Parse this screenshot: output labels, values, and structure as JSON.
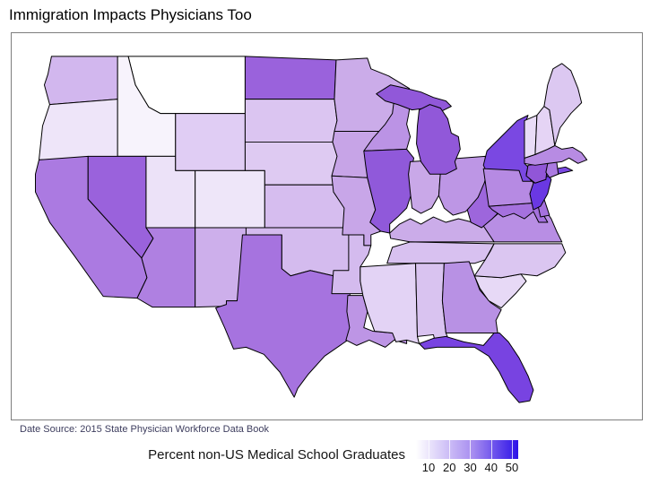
{
  "title": "Immigration Impacts Physicians Too",
  "source_note": "Date Source: 2015 State Physician Workforce Data Book",
  "chart_data": {
    "type": "choropleth_map",
    "region": "United States (lower 48 states)",
    "title": "Immigration Impacts Physicians Too",
    "legend_title": "Percent non-US Medical School Graduates",
    "legend_ticks": [
      10,
      20,
      30,
      40,
      50
    ],
    "scale": {
      "min": 4,
      "max": 53,
      "min_color": "#ffffff",
      "mid_color": "#a88ef0",
      "max_color": "#2d12e8"
    },
    "source_note": "Date Source: 2015 State Physician Workforce Data Book",
    "states": [
      {
        "abbr": "MT",
        "name": "Montana",
        "value": 4,
        "color": "#ffffff"
      },
      {
        "abbr": "ID",
        "name": "Idaho",
        "value": 7,
        "color": "#f7f3fc"
      },
      {
        "abbr": "WA",
        "name": "Washington",
        "value": 18,
        "color": "#d2b7ee"
      },
      {
        "abbr": "OR",
        "name": "Oregon",
        "value": 11,
        "color": "#eee5f9"
      },
      {
        "abbr": "CA",
        "name": "California",
        "value": 26,
        "color": "#ab7ae1"
      },
      {
        "abbr": "NV",
        "name": "Nevada",
        "value": 30,
        "color": "#9a62dc"
      },
      {
        "abbr": "UT",
        "name": "Utah",
        "value": 10,
        "color": "#ece2f8"
      },
      {
        "abbr": "CO",
        "name": "Colorado",
        "value": 10,
        "color": "#eee6f9"
      },
      {
        "abbr": "WY",
        "name": "Wyoming",
        "value": 13,
        "color": "#e0cdf4"
      },
      {
        "abbr": "AZ",
        "name": "Arizona",
        "value": 25,
        "color": "#af80e1"
      },
      {
        "abbr": "NM",
        "name": "New Mexico",
        "value": 19,
        "color": "#cdafeb"
      },
      {
        "abbr": "ND",
        "name": "North Dakota",
        "value": 30,
        "color": "#9a62dc"
      },
      {
        "abbr": "SD",
        "name": "South Dakota",
        "value": 15,
        "color": "#dbc5f1"
      },
      {
        "abbr": "NE",
        "name": "Nebraska",
        "value": 14,
        "color": "#decaf2"
      },
      {
        "abbr": "KS",
        "name": "Kansas",
        "value": 17,
        "color": "#d6bdef"
      },
      {
        "abbr": "OK",
        "name": "Oklahoma",
        "value": 17,
        "color": "#d4bbee"
      },
      {
        "abbr": "TX",
        "name": "Texas",
        "value": 26,
        "color": "#a673df"
      },
      {
        "abbr": "MN",
        "name": "Minnesota",
        "value": 20,
        "color": "#cbace9"
      },
      {
        "abbr": "IA",
        "name": "Iowa",
        "value": 21,
        "color": "#c7a4e7"
      },
      {
        "abbr": "MO",
        "name": "Missouri",
        "value": 21,
        "color": "#c8a6e8"
      },
      {
        "abbr": "AR",
        "name": "Arkansas",
        "value": 17,
        "color": "#d4bbee"
      },
      {
        "abbr": "LA",
        "name": "Louisiana",
        "value": 23,
        "color": "#bd95e5"
      },
      {
        "abbr": "WI",
        "name": "Wisconsin",
        "value": 24,
        "color": "#bb93e5"
      },
      {
        "abbr": "IL",
        "name": "Illinois",
        "value": 31,
        "color": "#9059da"
      },
      {
        "abbr": "IN",
        "name": "Indiana",
        "value": 21,
        "color": "#c9a8e8"
      },
      {
        "abbr": "OH",
        "name": "Ohio",
        "value": 23,
        "color": "#bd96e5"
      },
      {
        "abbr": "MI",
        "name": "Michigan",
        "value": 30,
        "color": "#9158d9"
      },
      {
        "abbr": "KY",
        "name": "Kentucky",
        "value": 20,
        "color": "#cbace9"
      },
      {
        "abbr": "TN",
        "name": "Tennessee",
        "value": 16,
        "color": "#d8c1f0"
      },
      {
        "abbr": "MS",
        "name": "Mississippi",
        "value": 13,
        "color": "#e3d3f5"
      },
      {
        "abbr": "AL",
        "name": "Alabama",
        "value": 15,
        "color": "#d9c3f0"
      },
      {
        "abbr": "GA",
        "name": "Georgia",
        "value": 24,
        "color": "#b891e4"
      },
      {
        "abbr": "FL",
        "name": "Florida",
        "value": 36,
        "color": "#7843e1"
      },
      {
        "abbr": "SC",
        "name": "South Carolina",
        "value": 12,
        "color": "#e7d9f6"
      },
      {
        "abbr": "NC",
        "name": "North Carolina",
        "value": 15,
        "color": "#dbc6f1"
      },
      {
        "abbr": "VA",
        "name": "Virginia",
        "value": 23,
        "color": "#b88ee4"
      },
      {
        "abbr": "WV",
        "name": "West Virginia",
        "value": 29,
        "color": "#9d66dc"
      },
      {
        "abbr": "MD",
        "name": "Maryland",
        "value": 28,
        "color": "#a571de"
      },
      {
        "abbr": "DE",
        "name": "Delaware",
        "value": 28,
        "color": "#a571de"
      },
      {
        "abbr": "PA",
        "name": "Pennsylvania",
        "value": 24,
        "color": "#b68ae3"
      },
      {
        "abbr": "NJ",
        "name": "New Jersey",
        "value": 39,
        "color": "#6a38e3"
      },
      {
        "abbr": "NY",
        "name": "New York",
        "value": 37,
        "color": "#7a48e2"
      },
      {
        "abbr": "CT",
        "name": "Connecticut",
        "value": 30,
        "color": "#9156d8"
      },
      {
        "abbr": "RI",
        "name": "Rhode Island",
        "value": 26,
        "color": "#ab7ae1"
      },
      {
        "abbr": "MA",
        "name": "Massachusetts",
        "value": 24,
        "color": "#b78be3"
      },
      {
        "abbr": "VT",
        "name": "Vermont",
        "value": 12,
        "color": "#e9dcf7"
      },
      {
        "abbr": "NH",
        "name": "New Hampshire",
        "value": 13,
        "color": "#e5d4f5"
      },
      {
        "abbr": "ME",
        "name": "Maine",
        "value": 15,
        "color": "#dcc8f1"
      }
    ]
  }
}
